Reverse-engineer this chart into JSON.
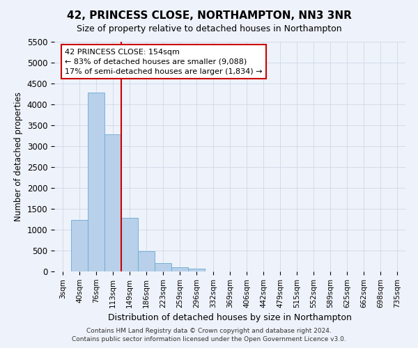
{
  "title": "42, PRINCESS CLOSE, NORTHAMPTON, NN3 3NR",
  "subtitle": "Size of property relative to detached houses in Northampton",
  "xlabel": "Distribution of detached houses by size in Northampton",
  "ylabel": "Number of detached properties",
  "footer_line1": "Contains HM Land Registry data © Crown copyright and database right 2024.",
  "footer_line2": "Contains public sector information licensed under the Open Government Licence v3.0.",
  "categories": [
    "3sqm",
    "40sqm",
    "76sqm",
    "113sqm",
    "149sqm",
    "186sqm",
    "223sqm",
    "259sqm",
    "296sqm",
    "332sqm",
    "369sqm",
    "406sqm",
    "442sqm",
    "479sqm",
    "515sqm",
    "552sqm",
    "589sqm",
    "625sqm",
    "662sqm",
    "698sqm",
    "735sqm"
  ],
  "values": [
    0,
    1230,
    4280,
    3280,
    1280,
    480,
    200,
    100,
    60,
    0,
    0,
    0,
    0,
    0,
    0,
    0,
    0,
    0,
    0,
    0,
    0
  ],
  "bar_color": "#b8d0ea",
  "bar_edge_color": "#6aaad4",
  "ylim": [
    0,
    5500
  ],
  "yticks": [
    0,
    500,
    1000,
    1500,
    2000,
    2500,
    3000,
    3500,
    4000,
    4500,
    5000,
    5500
  ],
  "annotation_line1": "42 PRINCESS CLOSE: 154sqm",
  "annotation_line2": "← 83% of detached houses are smaller (9,088)",
  "annotation_line3": "17% of semi-detached houses are larger (1,834) →",
  "annotation_box_color": "#ffffff",
  "annotation_box_edge": "#cc0000",
  "red_line_color": "#cc0000",
  "red_line_x": 3.5,
  "grid_color": "#d0d8e8",
  "background_color": "#eef2fa"
}
